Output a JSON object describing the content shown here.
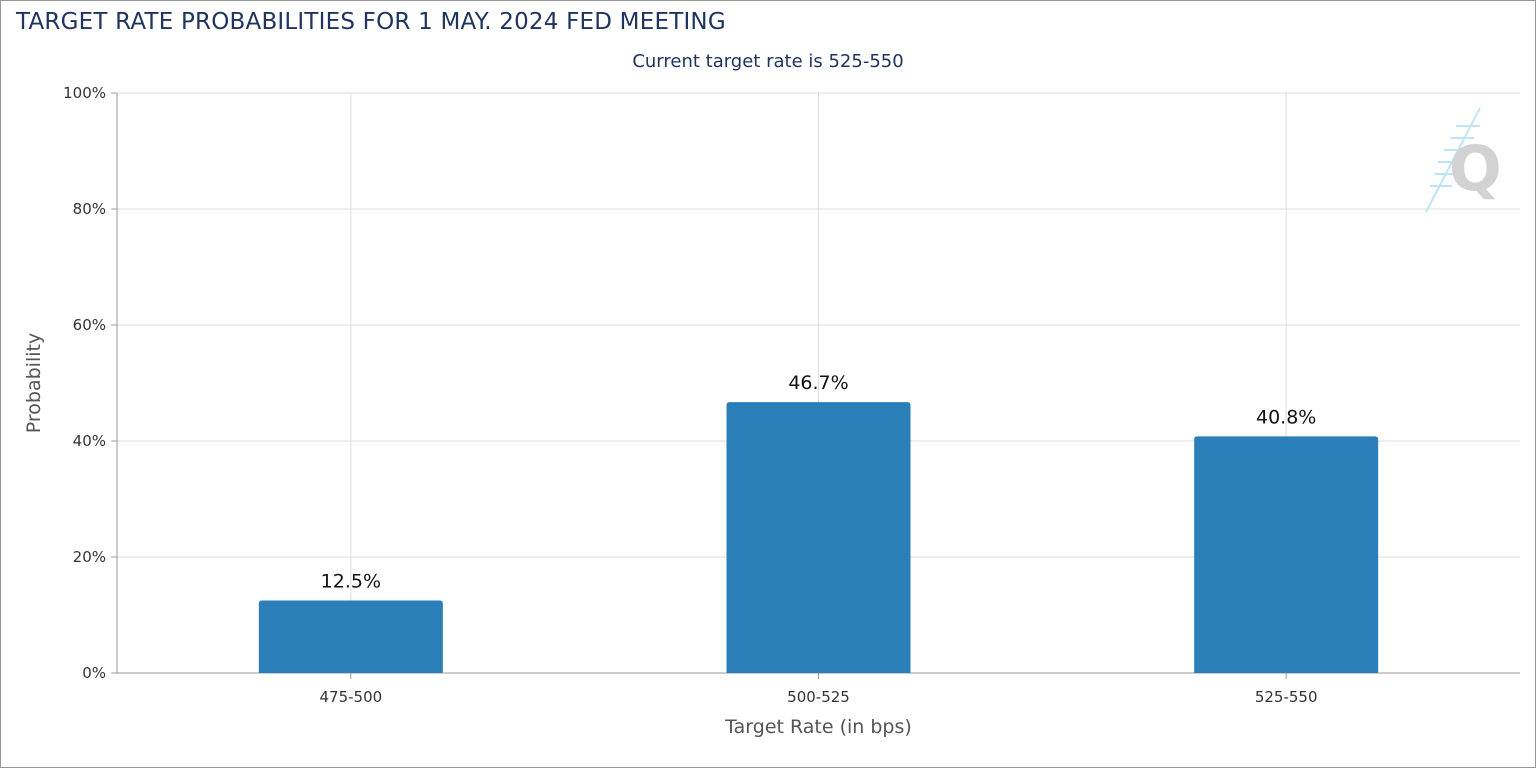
{
  "title": "TARGET RATE PROBABILITIES FOR 1 MAY. 2024 FED MEETING",
  "subtitle": "Current target rate is 525-550",
  "logo": {
    "icon": "q-logo-icon",
    "text": "Q"
  },
  "colors": {
    "bar": "#2a7fb8",
    "title": "#1f3460",
    "grid": "#dcdcdc",
    "axis_text": "#333333",
    "axis_title": "#555555",
    "label": "#111111"
  },
  "chart_data": {
    "type": "bar",
    "categories": [
      "475-500",
      "500-525",
      "525-550"
    ],
    "values": [
      12.5,
      46.7,
      40.8
    ],
    "data_labels": [
      "12.5%",
      "46.7%",
      "40.8%"
    ],
    "title": "TARGET RATE PROBABILITIES FOR 1 MAY. 2024 FED MEETING",
    "subtitle": "Current target rate is 525-550",
    "xlabel": "Target Rate (in bps)",
    "ylabel": "Probability",
    "ylim": [
      0,
      100
    ],
    "yticks": [
      0,
      20,
      40,
      60,
      80,
      100
    ],
    "ytick_labels": [
      "0%",
      "20%",
      "40%",
      "60%",
      "80%",
      "100%"
    ],
    "grid": true,
    "legend": "none"
  }
}
